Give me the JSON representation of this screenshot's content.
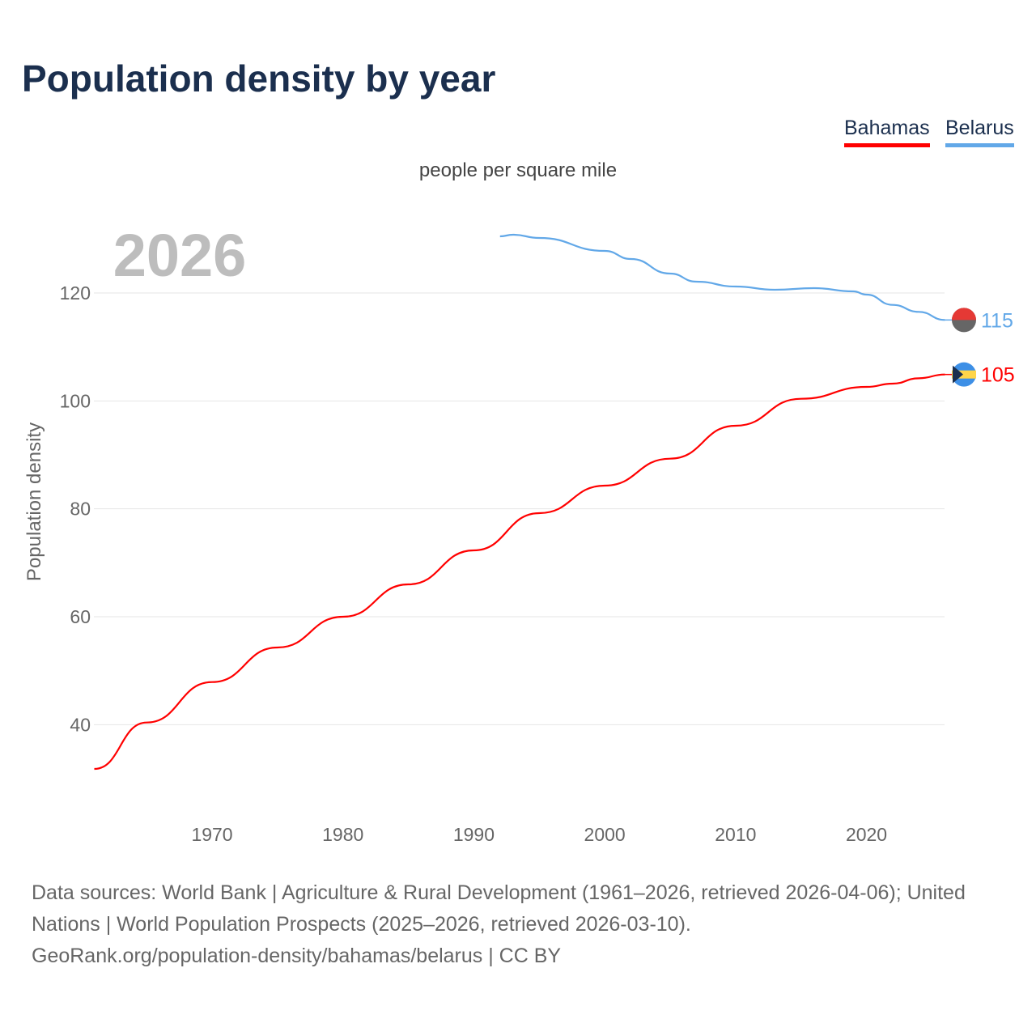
{
  "title": "Population density by year",
  "subtitle": "people per square mile",
  "legend": [
    {
      "label": "Bahamas",
      "color": "#ff0000"
    },
    {
      "label": "Belarus",
      "color": "#62a8e8"
    }
  ],
  "year_watermark": "2026",
  "chart_data": {
    "type": "line",
    "title": "Population density by year",
    "ylabel": "Population density",
    "xlabel": "",
    "xlim": [
      1961,
      2026
    ],
    "ylim": [
      28,
      134
    ],
    "xticks": [
      1970,
      1980,
      1990,
      2000,
      2010,
      2020
    ],
    "yticks": [
      40,
      60,
      80,
      100,
      120
    ],
    "grid": true,
    "legend_position": "top-right",
    "series": [
      {
        "name": "Bahamas",
        "color": "#ff0000",
        "end_label": "105",
        "x": [
          1961,
          1965,
          1970,
          1975,
          1980,
          1985,
          1990,
          1995,
          2000,
          2005,
          2010,
          2015,
          2020,
          2022,
          2024,
          2026
        ],
        "y": [
          31.8,
          40.4,
          47.9,
          54.3,
          60.0,
          66.0,
          72.3,
          79.2,
          84.3,
          89.3,
          95.4,
          100.4,
          102.6,
          103.2,
          104.2,
          104.9
        ]
      },
      {
        "name": "Belarus",
        "color": "#62a8e8",
        "end_label": "115",
        "x": [
          1992,
          1993,
          1995,
          2000,
          2002,
          2005,
          2007,
          2010,
          2013,
          2016,
          2019,
          2020,
          2022,
          2024,
          2026
        ],
        "y": [
          130.5,
          130.8,
          130.2,
          127.8,
          126.3,
          123.6,
          122.1,
          121.2,
          120.6,
          120.9,
          120.3,
          119.7,
          117.8,
          116.5,
          115.0
        ]
      }
    ]
  },
  "footer": {
    "sources": "Data sources: World Bank | Agriculture & Rural Development (1961–2026, retrieved 2026-04-06); United Nations | World Population Prospects (2025–2026, retrieved 2026-03-10).",
    "link": "GeoRank.org/population-density/bahamas/belarus",
    "license": " | CC BY"
  }
}
